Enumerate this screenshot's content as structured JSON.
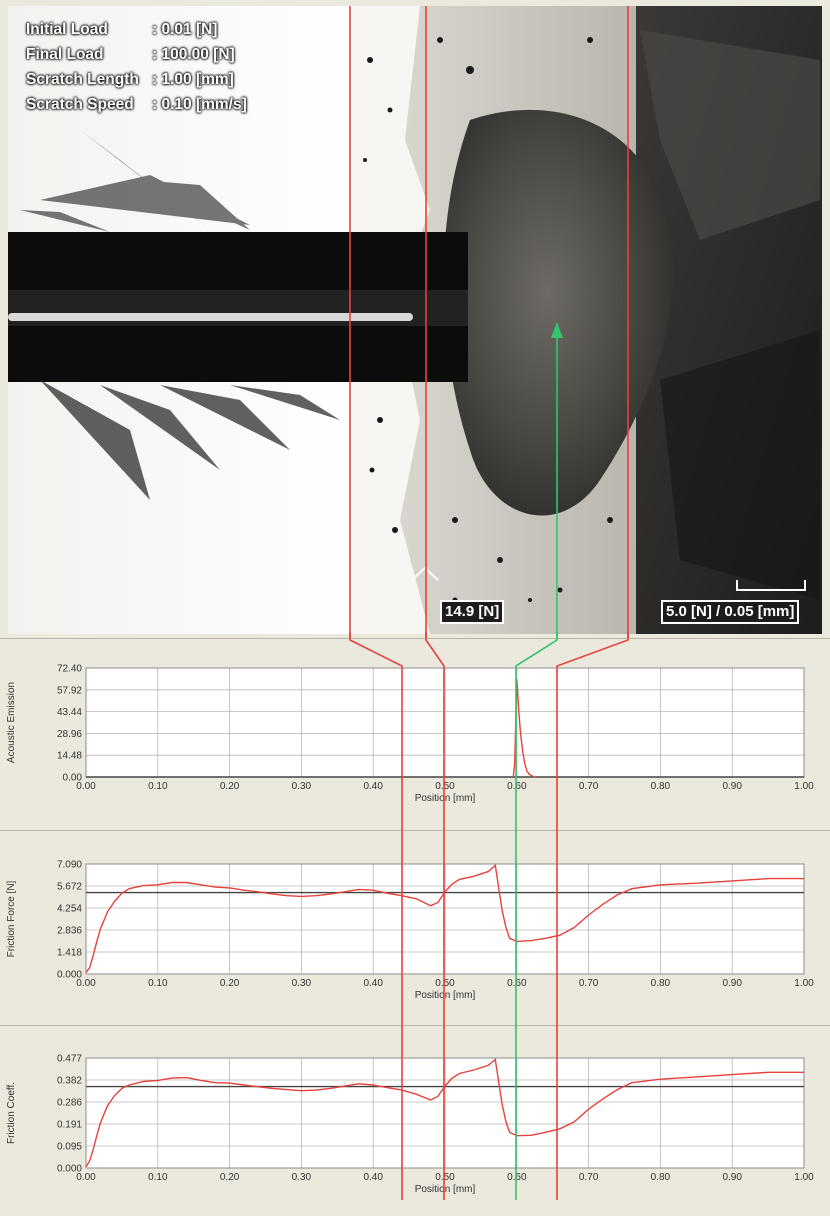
{
  "micrograph": {
    "parameters": [
      {
        "label": "Initial Load",
        "value": ": 0.01 [N]"
      },
      {
        "label": "Final Load",
        "value": ": 100.00 [N]"
      },
      {
        "label": "Scratch Length",
        "value": ": 1.00 [mm]"
      },
      {
        "label": "Scratch Speed",
        "value": ": 0.10 [mm/s]"
      }
    ],
    "critical_load_label": "14.9 [N]",
    "scale_bar_label": "5.0 [N] / 0.05 [mm]"
  },
  "chart_data": [
    {
      "type": "line",
      "ylabel": "Acoustic Emission",
      "xlabel": "Position [mm]",
      "xlim": [
        0,
        1
      ],
      "ylim": [
        0,
        72.4
      ],
      "x_ticks": [
        "0.00",
        "0.10",
        "0.20",
        "0.30",
        "0.40",
        "0.50",
        "0.60",
        "0.70",
        "0.80",
        "0.90",
        "1.00"
      ],
      "y_ticks": [
        "0.00",
        "14.48",
        "28.96",
        "43.44",
        "57.92",
        "72.40"
      ],
      "grid": true,
      "series": [
        {
          "color": "#e8413c",
          "x": [
            0.595,
            0.597,
            0.599,
            0.6,
            0.601,
            0.603,
            0.605,
            0.608,
            0.611,
            0.614,
            0.617,
            0.62,
            0.623,
            0.626
          ],
          "y": [
            0,
            8,
            45,
            65,
            58,
            42,
            30,
            18,
            9,
            4,
            2,
            1,
            0.3,
            0
          ]
        }
      ]
    },
    {
      "type": "line",
      "ylabel": "Friction Force [N]",
      "xlabel": "Position [mm]",
      "xlim": [
        0,
        1
      ],
      "ylim": [
        0,
        7.09
      ],
      "x_ticks": [
        "0.00",
        "0.10",
        "0.20",
        "0.30",
        "0.40",
        "0.50",
        "0.60",
        "0.70",
        "0.80",
        "0.90",
        "1.00"
      ],
      "y_ticks": [
        "0.000",
        "1.418",
        "2.836",
        "4.254",
        "5.672",
        "7.090"
      ],
      "grid": true,
      "mean_line": 5.25,
      "series": [
        {
          "color": "#e8413c",
          "x": [
            0.0,
            0.005,
            0.01,
            0.015,
            0.02,
            0.03,
            0.04,
            0.05,
            0.06,
            0.08,
            0.1,
            0.12,
            0.14,
            0.16,
            0.18,
            0.2,
            0.22,
            0.24,
            0.26,
            0.28,
            0.3,
            0.32,
            0.34,
            0.36,
            0.38,
            0.4,
            0.42,
            0.44,
            0.46,
            0.48,
            0.49,
            0.5,
            0.51,
            0.52,
            0.54,
            0.56,
            0.57,
            0.575,
            0.58,
            0.585,
            0.59,
            0.6,
            0.62,
            0.64,
            0.66,
            0.68,
            0.7,
            0.72,
            0.74,
            0.76,
            0.8,
            0.85,
            0.9,
            0.95,
            1.0
          ],
          "y": [
            0.1,
            0.4,
            1.2,
            2.1,
            2.9,
            4.0,
            4.7,
            5.2,
            5.5,
            5.7,
            5.75,
            5.9,
            5.9,
            5.75,
            5.6,
            5.55,
            5.4,
            5.3,
            5.15,
            5.05,
            5.0,
            5.05,
            5.15,
            5.3,
            5.45,
            5.4,
            5.2,
            5.05,
            4.85,
            4.4,
            4.6,
            5.3,
            5.8,
            6.1,
            6.3,
            6.6,
            7.0,
            5.5,
            4.0,
            3.0,
            2.3,
            2.1,
            2.15,
            2.3,
            2.5,
            3.0,
            3.8,
            4.5,
            5.1,
            5.5,
            5.75,
            5.85,
            6.0,
            6.15,
            6.15
          ]
        }
      ]
    },
    {
      "type": "line",
      "ylabel": "Friction Coeff.",
      "xlabel": "Position [mm]",
      "xlim": [
        0,
        1
      ],
      "ylim": [
        0,
        0.477
      ],
      "x_ticks": [
        "0.00",
        "0.10",
        "0.20",
        "0.30",
        "0.40",
        "0.50",
        "0.60",
        "0.70",
        "0.80",
        "0.90",
        "1.00"
      ],
      "y_ticks": [
        "0.000",
        "0.095",
        "0.191",
        "0.286",
        "0.382",
        "0.477"
      ],
      "grid": true,
      "mean_line": 0.353,
      "series": [
        {
          "color": "#e8413c",
          "x": [
            0.0,
            0.005,
            0.01,
            0.015,
            0.02,
            0.03,
            0.04,
            0.05,
            0.06,
            0.08,
            0.1,
            0.12,
            0.14,
            0.16,
            0.18,
            0.2,
            0.22,
            0.24,
            0.26,
            0.28,
            0.3,
            0.32,
            0.34,
            0.36,
            0.38,
            0.4,
            0.42,
            0.44,
            0.46,
            0.48,
            0.49,
            0.5,
            0.51,
            0.52,
            0.54,
            0.56,
            0.57,
            0.575,
            0.58,
            0.585,
            0.59,
            0.6,
            0.62,
            0.64,
            0.66,
            0.68,
            0.7,
            0.72,
            0.74,
            0.76,
            0.8,
            0.85,
            0.9,
            0.95,
            1.0
          ],
          "y": [
            0.005,
            0.03,
            0.08,
            0.14,
            0.195,
            0.27,
            0.315,
            0.345,
            0.36,
            0.375,
            0.38,
            0.39,
            0.392,
            0.38,
            0.37,
            0.368,
            0.36,
            0.352,
            0.345,
            0.34,
            0.335,
            0.338,
            0.345,
            0.355,
            0.365,
            0.36,
            0.348,
            0.338,
            0.32,
            0.295,
            0.31,
            0.355,
            0.39,
            0.41,
            0.425,
            0.445,
            0.47,
            0.37,
            0.27,
            0.2,
            0.155,
            0.14,
            0.142,
            0.155,
            0.17,
            0.2,
            0.255,
            0.3,
            0.34,
            0.37,
            0.385,
            0.395,
            0.405,
            0.415,
            0.415
          ]
        }
      ]
    }
  ]
}
